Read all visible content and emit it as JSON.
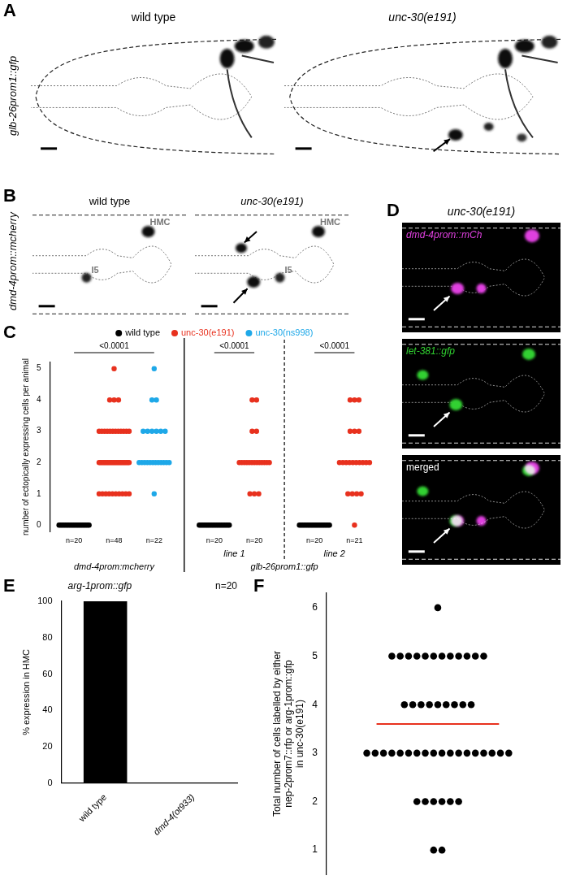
{
  "figure": {
    "A": {
      "label": "A",
      "reporter": "glb-26prom1::gfp",
      "images": [
        "wild type",
        "unc-30(e191)"
      ]
    },
    "B": {
      "label": "B",
      "reporter": "dmd-4prom::mcherry",
      "images": [
        {
          "title": "wild type",
          "cells": [
            "HMC",
            "I5"
          ]
        },
        {
          "title": "unc-30(e191)",
          "cells": [
            "HMC",
            "I5"
          ]
        }
      ]
    },
    "D": {
      "label": "D",
      "title": "unc-30(e191)",
      "channels": [
        {
          "name": "dmd-4prom::mCh",
          "color": "#e040e0"
        },
        {
          "name": "let-381::gfp",
          "color": "#30d030"
        },
        {
          "name": "merged",
          "color": "#ffffff"
        }
      ]
    }
  },
  "chart_data": [
    {
      "label": "C",
      "type": "strip",
      "ylabel": "number of ectopically expressing cells per animal",
      "ylim": [
        -0.2,
        5.2
      ],
      "yticks": [
        0,
        1,
        2,
        3,
        4,
        5
      ],
      "legend": "top",
      "series": [
        {
          "name": "wild type",
          "color": "#000000"
        },
        {
          "name": "unc-30(e191)",
          "color": "#e8311e"
        },
        {
          "name": "unc-30(ns998)",
          "color": "#1ea8e8"
        }
      ],
      "groups": [
        {
          "label": "dmd-4prom:mcherry",
          "subgroups": [
            {
              "p_value": "<0.0001",
              "strips": [
                {
                  "series": "wild type",
                  "n_label": "n=20",
                  "values": [
                    0,
                    0,
                    0,
                    0,
                    0,
                    0,
                    0,
                    0,
                    0,
                    0,
                    0,
                    0,
                    0,
                    0,
                    0,
                    0,
                    0,
                    0,
                    0,
                    0
                  ]
                },
                {
                  "series": "unc-30(e191)",
                  "n_label": "n=48",
                  "values": [
                    5,
                    4,
                    4,
                    4,
                    3,
                    3,
                    3,
                    3,
                    3,
                    3,
                    3,
                    3,
                    3,
                    3,
                    3,
                    3,
                    2,
                    2,
                    2,
                    2,
                    2,
                    2,
                    2,
                    2,
                    2,
                    2,
                    2,
                    2,
                    2,
                    2,
                    2,
                    2,
                    2,
                    2,
                    2,
                    2,
                    2,
                    2,
                    1,
                    1,
                    1,
                    1,
                    1,
                    1,
                    1,
                    1,
                    1,
                    1
                  ]
                },
                {
                  "series": "unc-30(ns998)",
                  "n_label": "n=22",
                  "values": [
                    5,
                    4,
                    4,
                    3,
                    3,
                    3,
                    3,
                    3,
                    3,
                    2,
                    2,
                    2,
                    2,
                    2,
                    2,
                    2,
                    2,
                    2,
                    2,
                    2,
                    2,
                    1
                  ]
                }
              ]
            }
          ]
        },
        {
          "label": "glb-26prom1::gfp",
          "subgroups": [
            {
              "label": "line 1",
              "p_value": "<0.0001",
              "strips": [
                {
                  "series": "wild type",
                  "n_label": "n=20",
                  "values": [
                    0,
                    0,
                    0,
                    0,
                    0,
                    0,
                    0,
                    0,
                    0,
                    0,
                    0,
                    0,
                    0,
                    0,
                    0,
                    0,
                    0,
                    0,
                    0,
                    0
                  ]
                },
                {
                  "series": "unc-30(e191)",
                  "n_label": "n=20",
                  "values": [
                    4,
                    4,
                    3,
                    3,
                    2,
                    2,
                    2,
                    2,
                    2,
                    2,
                    2,
                    2,
                    2,
                    2,
                    2,
                    2,
                    2,
                    1,
                    1,
                    1
                  ]
                }
              ]
            },
            {
              "label": "line 2",
              "p_value": "<0.0001",
              "strips": [
                {
                  "series": "wild type",
                  "n_label": "n=20",
                  "values": [
                    0,
                    0,
                    0,
                    0,
                    0,
                    0,
                    0,
                    0,
                    0,
                    0,
                    0,
                    0,
                    0,
                    0,
                    0,
                    0,
                    0,
                    0,
                    0,
                    0
                  ]
                },
                {
                  "series": "unc-30(e191)",
                  "n_label": "n=21",
                  "values": [
                    4,
                    4,
                    4,
                    3,
                    3,
                    3,
                    2,
                    2,
                    2,
                    2,
                    2,
                    2,
                    2,
                    2,
                    2,
                    2,
                    1,
                    1,
                    1,
                    1,
                    0
                  ]
                }
              ]
            }
          ]
        }
      ]
    },
    {
      "label": "E",
      "type": "bar",
      "title": "arg-1prom::gfp",
      "subtitle": "n=20",
      "ylabel": "% expression in HMC",
      "categories": [
        "wild type",
        "dmd-4(ot933)"
      ],
      "values": [
        100,
        0
      ],
      "color": "#000000",
      "ylim": [
        0,
        100
      ],
      "yticks": [
        0,
        20,
        40,
        60,
        80,
        100
      ]
    },
    {
      "label": "F",
      "type": "strip",
      "ylabel": [
        "Total number of cells labelled by either",
        "nep-2prom7::rfp or arg-1prom::gfp",
        "in unc-30(e191)"
      ],
      "ylim": [
        0.5,
        6.3
      ],
      "yticks": [
        1,
        2,
        3,
        4,
        5,
        6
      ],
      "color": "#000000",
      "mean": 3.6,
      "values": [
        6,
        5,
        5,
        5,
        5,
        5,
        5,
        5,
        5,
        5,
        5,
        5,
        5,
        4,
        4,
        4,
        4,
        4,
        4,
        4,
        4,
        4,
        3,
        3,
        3,
        3,
        3,
        3,
        3,
        3,
        3,
        3,
        3,
        3,
        3,
        3,
        3,
        3,
        3,
        3,
        2,
        2,
        2,
        2,
        2,
        2,
        1,
        1
      ]
    }
  ]
}
